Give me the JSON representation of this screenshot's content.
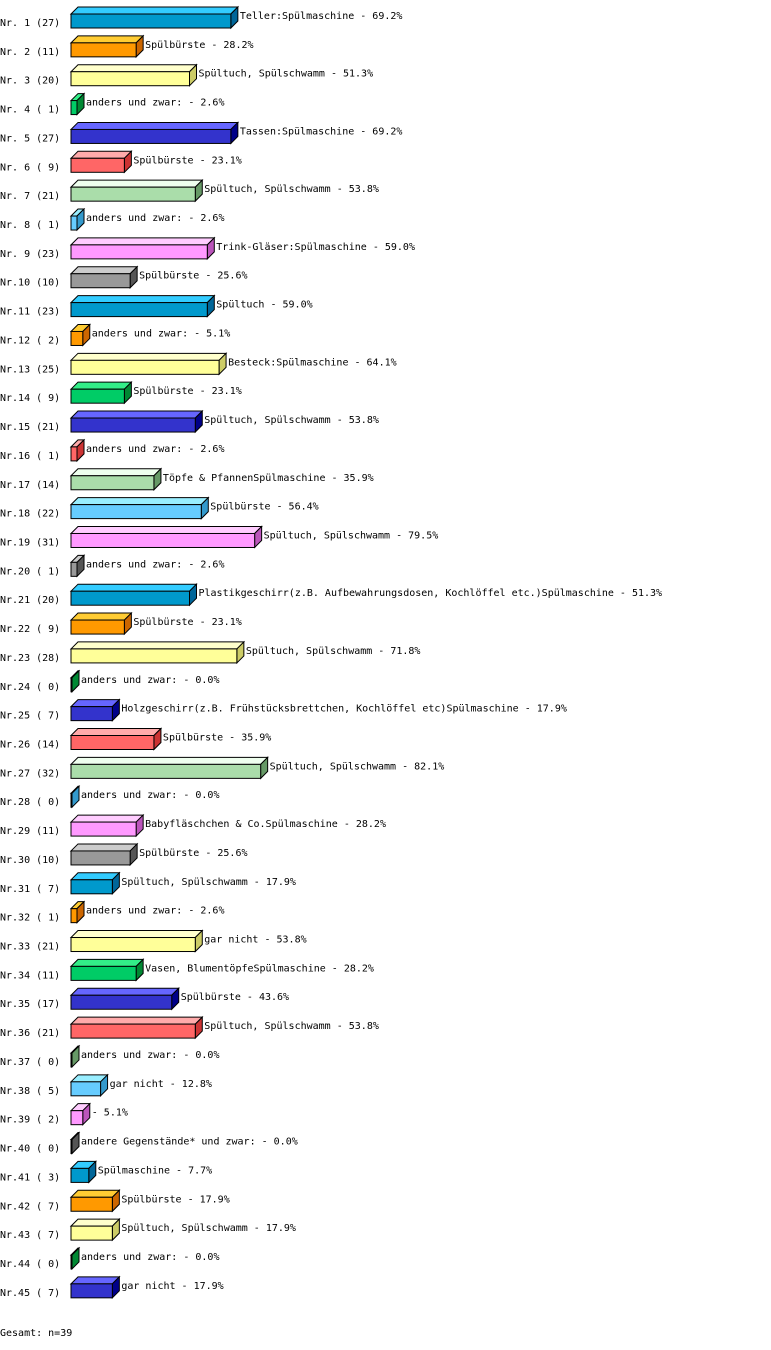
{
  "chart_data": {
    "type": "bar",
    "orientation": "horizontal",
    "style": "3d",
    "xlim": [
      0,
      100
    ],
    "grid": false,
    "categories": [
      "Nr. 1",
      "Nr. 2",
      "Nr. 3",
      "Nr. 4",
      "Nr. 5",
      "Nr. 6",
      "Nr. 7",
      "Nr. 8",
      "Nr. 9",
      "Nr.10",
      "Nr.11",
      "Nr.12",
      "Nr.13",
      "Nr.14",
      "Nr.15",
      "Nr.16",
      "Nr.17",
      "Nr.18",
      "Nr.19",
      "Nr.20",
      "Nr.21",
      "Nr.22",
      "Nr.23",
      "Nr.24",
      "Nr.25",
      "Nr.26",
      "Nr.27",
      "Nr.28",
      "Nr.29",
      "Nr.30",
      "Nr.31",
      "Nr.32",
      "Nr.33",
      "Nr.34",
      "Nr.35",
      "Nr.36",
      "Nr.37",
      "Nr.38",
      "Nr.39",
      "Nr.40",
      "Nr.41",
      "Nr.42",
      "Nr.43",
      "Nr.44",
      "Nr.45"
    ],
    "counts": [
      27,
      11,
      20,
      1,
      27,
      9,
      21,
      1,
      23,
      10,
      23,
      2,
      25,
      9,
      21,
      1,
      14,
      22,
      31,
      1,
      20,
      9,
      28,
      0,
      7,
      14,
      32,
      0,
      11,
      10,
      7,
      1,
      21,
      11,
      17,
      21,
      0,
      5,
      2,
      0,
      3,
      7,
      7,
      0,
      7
    ],
    "values": [
      69.2,
      28.2,
      51.3,
      2.6,
      69.2,
      23.1,
      53.8,
      2.6,
      59.0,
      25.6,
      59.0,
      5.1,
      64.1,
      23.1,
      53.8,
      2.6,
      35.9,
      56.4,
      79.5,
      2.6,
      51.3,
      23.1,
      71.8,
      0.0,
      17.9,
      35.9,
      82.1,
      0.0,
      28.2,
      25.6,
      17.9,
      2.6,
      53.8,
      28.2,
      43.6,
      53.8,
      0.0,
      12.8,
      5.1,
      0.0,
      7.7,
      17.9,
      17.9,
      0.0,
      17.9
    ],
    "labels": [
      "Teller:Spülmaschine",
      "Spülbürste",
      "Spültuch, Spülschwamm",
      "anders und zwar:",
      "Tassen:Spülmaschine",
      "Spülbürste",
      "Spültuch, Spülschwamm",
      "anders und zwar:",
      "Trink-Gläser:Spülmaschine",
      "Spülbürste",
      "Spültuch",
      "anders und zwar:",
      "Besteck:Spülmaschine",
      "Spülbürste",
      "Spültuch, Spülschwamm",
      "anders und zwar:",
      "Töpfe & PfannenSpülmaschine",
      "Spülbürste",
      "Spültuch, Spülschwamm",
      "anders und zwar:",
      "Plastikgeschirr(z.B. Aufbewahrungsdosen, Kochlöffel etc.)Spülmaschine",
      "Spülbürste",
      "Spültuch, Spülschwamm",
      "anders und zwar:",
      "Holzgeschirr(z.B. Frühstücksbrettchen, Kochlöffel etc)Spülmaschine",
      "Spülbürste",
      "Spültuch, Spülschwamm",
      "anders und zwar:",
      "Babyfläschchen & Co.Spülmaschine",
      "Spülbürste",
      "Spültuch, Spülschwamm",
      "anders und zwar:",
      "gar nicht",
      "Vasen, BlumentöpfeSpülmaschine",
      "Spülbürste",
      "Spültuch, Spülschwamm",
      "anders und zwar:",
      "gar nicht",
      "",
      "andere Gegenstände* und zwar:",
      "Spülmaschine",
      "Spülbürste",
      "Spültuch, Spülschwamm",
      "anders und zwar:",
      "gar nicht"
    ],
    "colors": [
      {
        "face": "#0099cc",
        "top": "#33ccff",
        "side": "#006699"
      },
      {
        "face": "#ff9900",
        "top": "#ffcc33",
        "side": "#cc6600"
      },
      {
        "face": "#ffff99",
        "top": "#ffffcc",
        "side": "#cccc66"
      },
      {
        "face": "#00cc66",
        "top": "#33ee88",
        "side": "#008833"
      },
      {
        "face": "#3333cc",
        "top": "#6666ff",
        "side": "#000088"
      },
      {
        "face": "#ff6666",
        "top": "#ffaaaa",
        "side": "#cc3333"
      },
      {
        "face": "#aaddaa",
        "top": "#eeffee",
        "side": "#669966"
      },
      {
        "face": "#66ccff",
        "top": "#99eeff",
        "side": "#3399cc"
      },
      {
        "face": "#ff99ff",
        "top": "#ffccff",
        "side": "#bb55bb"
      },
      {
        "face": "#999999",
        "top": "#cccccc",
        "side": "#555555"
      }
    ]
  },
  "footer": {
    "total": "Gesamt: n=39"
  }
}
